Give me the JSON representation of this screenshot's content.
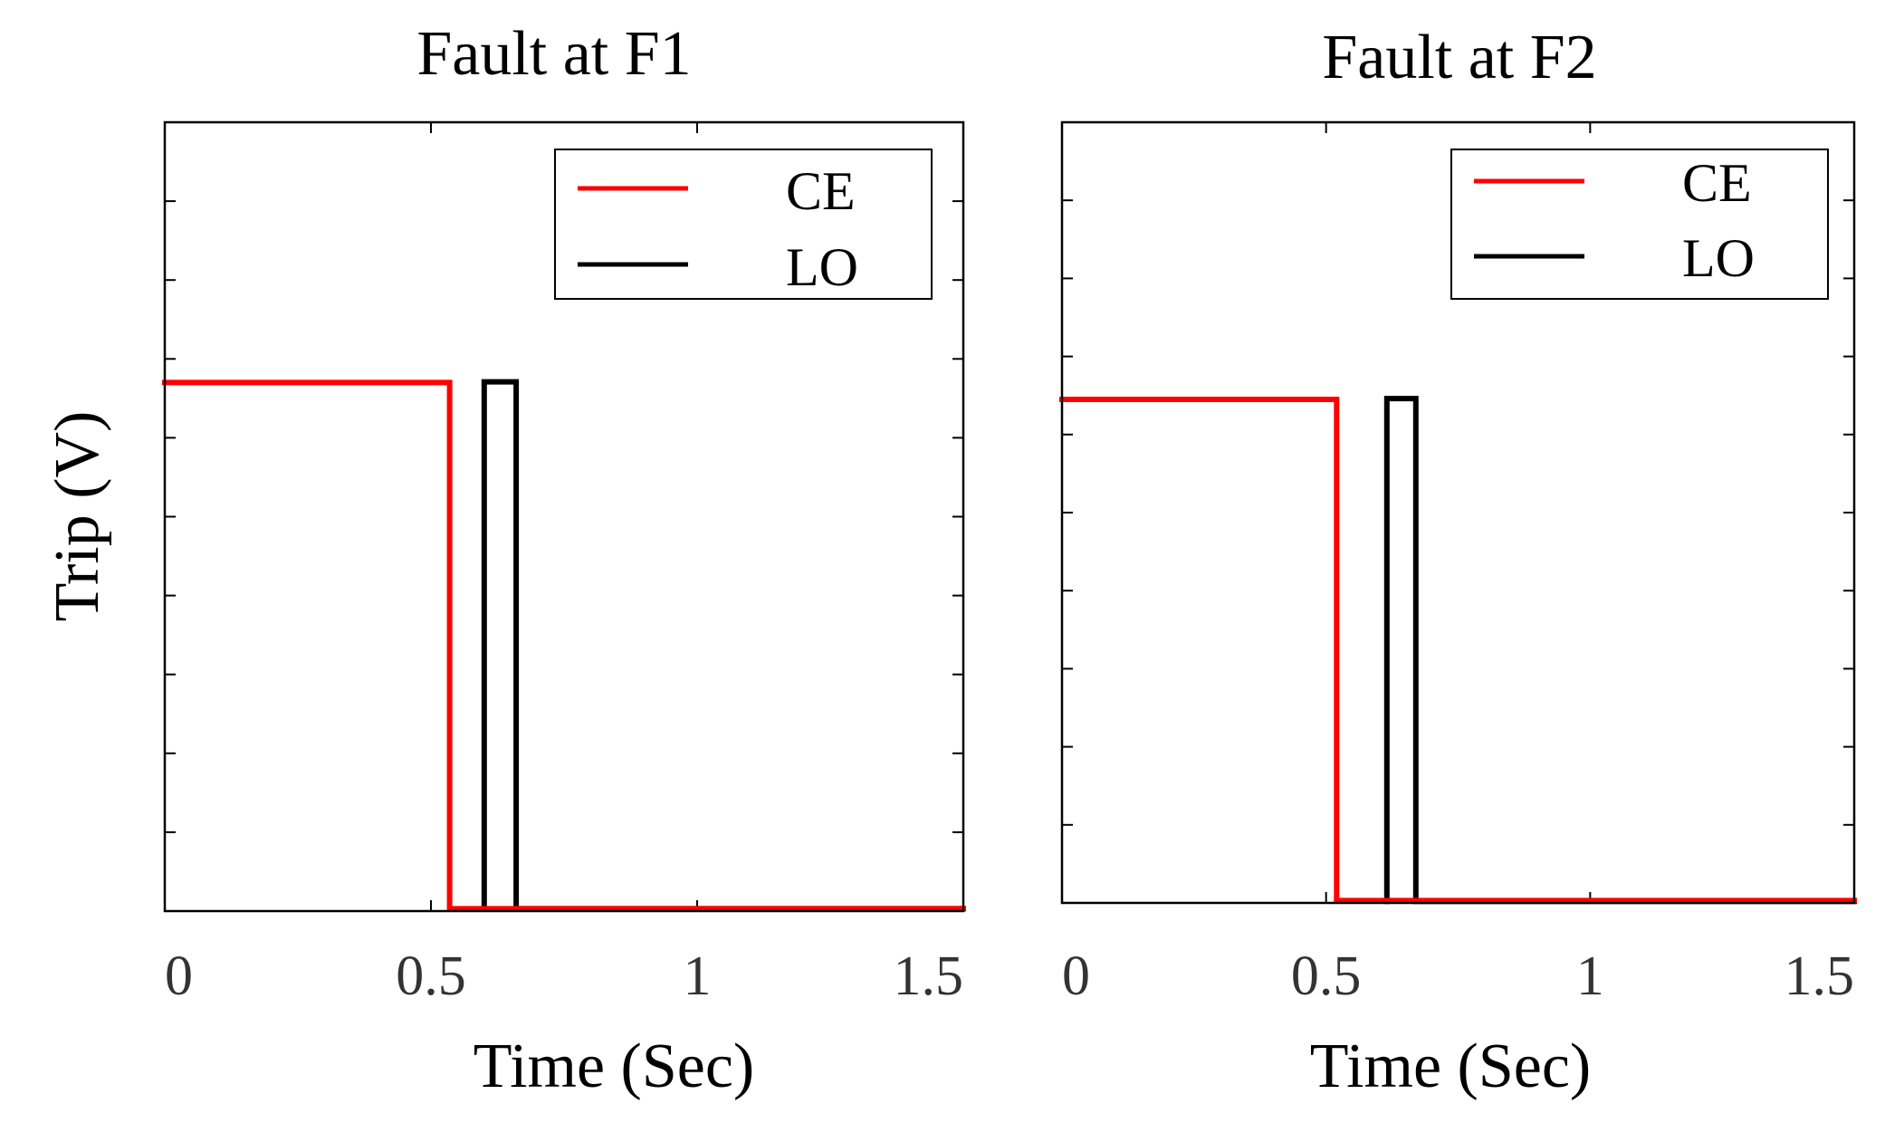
{
  "chart_data": [
    {
      "type": "line",
      "title": "Fault at F1",
      "xlabel": "Time (Sec)",
      "ylabel": "Trip (V)",
      "xlim": [
        0,
        1.5
      ],
      "ylim": [
        0,
        1
      ],
      "xticks": [
        0,
        0.5,
        1,
        1.5
      ],
      "xtick_labels": [
        "0",
        "0.5",
        "1",
        "1.5"
      ],
      "yticks_count": 11,
      "grid": false,
      "legend": "top-right",
      "series": [
        {
          "name": "CE",
          "color": "#ff0000",
          "x": [
            0,
            0.535,
            0.535,
            1.5
          ],
          "y": [
            0.67,
            0.67,
            0.003,
            0.003
          ]
        },
        {
          "name": "LO",
          "color": "#000000",
          "x": [
            0.6,
            0.6,
            0.66,
            0.66,
            1.5
          ],
          "y": [
            0.003,
            0.671,
            0.671,
            0.003,
            0.003
          ]
        }
      ]
    },
    {
      "type": "line",
      "title": "Fault at F2",
      "xlabel": "Time (Sec)",
      "ylabel": "",
      "xlim": [
        0,
        1.5
      ],
      "ylim": [
        0,
        1
      ],
      "xticks": [
        0,
        0.5,
        1,
        1.5
      ],
      "xtick_labels": [
        "0",
        "0.5",
        "1",
        "1.5"
      ],
      "yticks_count": 11,
      "grid": false,
      "legend": "top-right",
      "series": [
        {
          "name": "CE",
          "color": "#ff0000",
          "x": [
            0,
            0.52,
            0.52,
            1.5
          ],
          "y": [
            0.645,
            0.645,
            0.003,
            0.003
          ]
        },
        {
          "name": "LO",
          "color": "#000000",
          "x": [
            0.615,
            0.615,
            0.67,
            0.67,
            1.5
          ],
          "y": [
            0.002,
            0.646,
            0.646,
            0.002,
            0.002
          ]
        }
      ]
    }
  ]
}
